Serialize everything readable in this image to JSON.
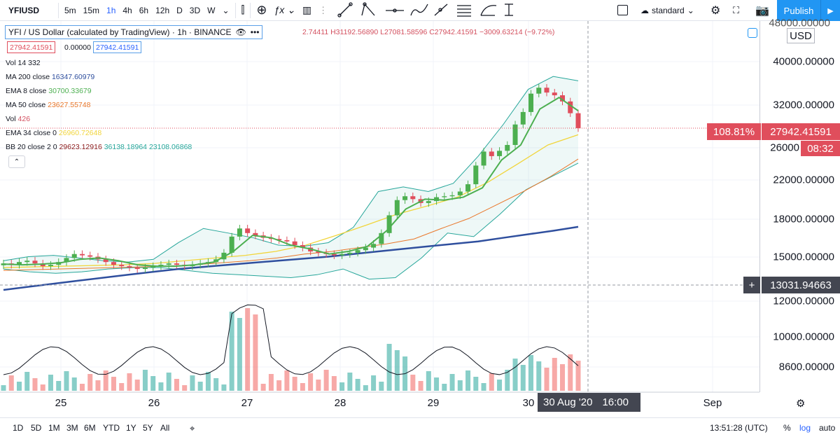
{
  "toolbar": {
    "symbol": "YFIUSD",
    "intervals": [
      "5m",
      "15m",
      "1h",
      "4h",
      "6h",
      "12h",
      "D",
      "3D",
      "W"
    ],
    "active_interval": "1h",
    "standard_label": "standard",
    "publish_label": "Publish"
  },
  "legend": {
    "title": "YFI / US Dollar (calculated by TradingView) · 1h · BINANCE",
    "ohlc": "2.74411 H31192.56890 L27081.58596 C27942.41591 −3009.63214 (−9.72%)",
    "price_left": "27942.41591",
    "spread": "0.00000",
    "price_right": "27942.41591",
    "indicators": [
      {
        "name": "Vol 14",
        "values": [
          "332"
        ],
        "colors": [
          "#131722"
        ]
      },
      {
        "name": "MA 200 close",
        "values": [
          "16347.60979"
        ],
        "colors": [
          "#2f4f9e"
        ]
      },
      {
        "name": "EMA 8 close",
        "values": [
          "30700.33679"
        ],
        "colors": [
          "#4caf50"
        ]
      },
      {
        "name": "MA 50 close",
        "values": [
          "23627.55748"
        ],
        "colors": [
          "#e9772a"
        ]
      },
      {
        "name": "Vol",
        "values": [
          "426"
        ],
        "colors": [
          "#d3505f"
        ]
      },
      {
        "name": "EMA 34 close 0",
        "values": [
          "26960.72648"
        ],
        "colors": [
          "#f1d53b"
        ]
      },
      {
        "name": "BB 20 close 2 0",
        "values": [
          "29623.12916",
          "36138.18964",
          "23108.06868"
        ],
        "colors": [
          "#8b1a1a",
          "#26a69a",
          "#26a69a"
        ]
      }
    ],
    "collapse_icon": "chevron-up-icon"
  },
  "axis": {
    "currency": "USD",
    "top_clipped_label": "48000.00000",
    "right_labels": [
      "40000.00000",
      "32000.00000",
      "26000",
      "22000.00000",
      "18000.00000",
      "15000.00000",
      "12000.00000",
      "10000.00000",
      "8600.00000"
    ],
    "last_price": "27942.41591",
    "change_pct": "108.81%",
    "countdown": "08:32",
    "crosshair_price": "13031.94663",
    "crosshair_date": "30 Aug '20",
    "crosshair_time": "16:00",
    "x_labels": [
      "25",
      "26",
      "27",
      "28",
      "29",
      "30",
      "Sep"
    ],
    "last_price_color": "#e04e5c",
    "crosshair_tag_color": "#434651"
  },
  "bottom": {
    "ranges": [
      "1D",
      "5D",
      "1M",
      "3M",
      "6M",
      "YTD",
      "1Y",
      "5Y",
      "All"
    ],
    "clock": "13:51:28 (UTC)",
    "pct": "%",
    "log": "log",
    "auto": "auto"
  },
  "chart_data": {
    "type": "candlestick",
    "scale": "log",
    "ylim": [
      11000,
      50000
    ],
    "x_labels": [
      "25",
      "26",
      "27",
      "28",
      "29",
      "30",
      "Sep"
    ],
    "close": [
      13400,
      13300,
      13500,
      13600,
      13400,
      13200,
      13300,
      13500,
      13800,
      14100,
      14000,
      13900,
      13700,
      13500,
      13300,
      13200,
      13100,
      13000,
      13100,
      13200,
      13300,
      13400,
      13300,
      13200,
      13300,
      13400,
      13500,
      13700,
      14200,
      15500,
      16200,
      15800,
      15600,
      15400,
      15300,
      15200,
      15100,
      14800,
      14600,
      14300,
      14200,
      14100,
      14000,
      14100,
      14200,
      14400,
      14600,
      14900,
      15800,
      17400,
      18900,
      19300,
      19000,
      18600,
      18800,
      19200,
      19300,
      19400,
      19800,
      20600,
      22800,
      24600,
      24000,
      24700,
      25500,
      28500,
      30500,
      33700,
      34800,
      33900,
      33400,
      32300,
      30300,
      27942
    ],
    "ma200": [
      11600,
      11800,
      12000,
      12200,
      12400,
      12600,
      12800,
      13000,
      13150,
      13300,
      13450,
      13600,
      13750,
      13900,
      14100,
      14300,
      14500,
      14700,
      14900,
      15100,
      15400,
      15700,
      16000,
      16347
    ],
    "ema8": [
      13350,
      13300,
      13350,
      13450,
      13700,
      13800,
      13600,
      13300,
      13200,
      13200,
      13300,
      13500,
      14300,
      15600,
      15400,
      14800,
      14500,
      14100,
      14300,
      14700,
      16000,
      18000,
      19000,
      18900,
      19200,
      20200,
      23500,
      25500,
      31000,
      33000,
      30700
    ],
    "ma50": [
      12900,
      12950,
      13000,
      13050,
      13100,
      13150,
      13200,
      13300,
      13450,
      13600,
      13800,
      14100,
      14300,
      14600,
      14900,
      15300,
      16200,
      17100,
      18400,
      19800,
      21500,
      23627
    ],
    "ema34": [
      13100,
      13150,
      13200,
      13250,
      13300,
      13400,
      13600,
      13800,
      14000,
      14300,
      14800,
      15600,
      16500,
      17500,
      18300,
      19200,
      20800,
      23000,
      25500,
      26960
    ],
    "bb_upper": [
      13600,
      13900,
      14000,
      13800,
      13600,
      13500,
      13700,
      15000,
      16200,
      15800,
      15400,
      14800,
      14700,
      15000,
      16300,
      19800,
      20300,
      19800,
      20700,
      24000,
      28500,
      34500,
      37000,
      36138
    ],
    "bb_lower": [
      13000,
      12800,
      12700,
      12800,
      13000,
      13100,
      13100,
      12900,
      12700,
      12600,
      12500,
      12400,
      12600,
      13000,
      12300,
      12400,
      13800,
      15800,
      15500,
      17500,
      20000,
      21500,
      23108
    ]
  }
}
